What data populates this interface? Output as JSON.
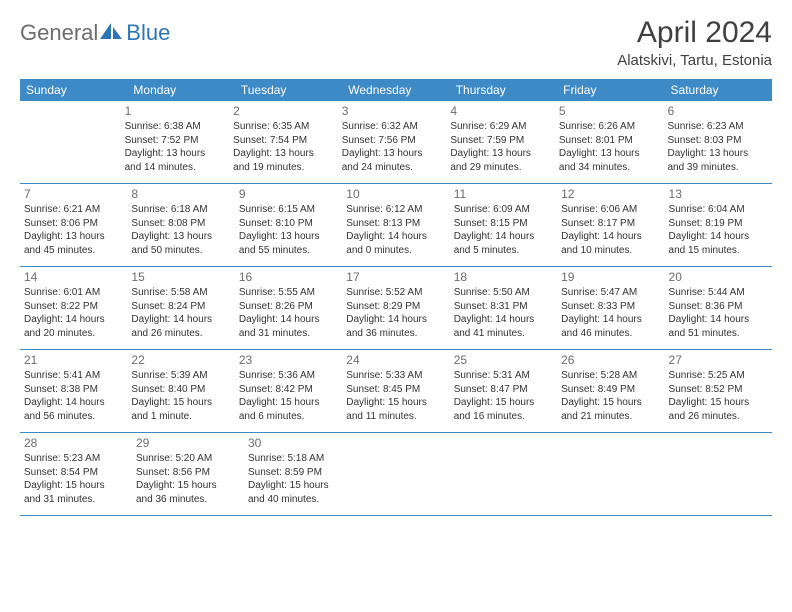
{
  "brand": {
    "general": "General",
    "blue": "Blue"
  },
  "title": "April 2024",
  "location": "Alatskivi, Tartu, Estonia",
  "colors": {
    "header_bg": "#3d8ac7",
    "header_text": "#ffffff",
    "daynum": "#6d6d6d",
    "body_text": "#333333",
    "rule": "#3d8ac7",
    "brand_gray": "#6d6d6d",
    "brand_blue": "#2e75b6",
    "background": "#ffffff"
  },
  "typography": {
    "title_fontsize": 30,
    "location_fontsize": 15,
    "dow_fontsize": 12,
    "daynum_fontsize": 12,
    "body_fontsize": 10
  },
  "daysOfWeek": [
    "Sunday",
    "Monday",
    "Tuesday",
    "Wednesday",
    "Thursday",
    "Friday",
    "Saturday"
  ],
  "grid": {
    "columns": 7,
    "rows": 5,
    "start_offset": 1,
    "days_in_month": 30
  },
  "days": {
    "1": {
      "sunrise": "Sunrise: 6:38 AM",
      "sunset": "Sunset: 7:52 PM",
      "d1": "Daylight: 13 hours",
      "d2": "and 14 minutes."
    },
    "2": {
      "sunrise": "Sunrise: 6:35 AM",
      "sunset": "Sunset: 7:54 PM",
      "d1": "Daylight: 13 hours",
      "d2": "and 19 minutes."
    },
    "3": {
      "sunrise": "Sunrise: 6:32 AM",
      "sunset": "Sunset: 7:56 PM",
      "d1": "Daylight: 13 hours",
      "d2": "and 24 minutes."
    },
    "4": {
      "sunrise": "Sunrise: 6:29 AM",
      "sunset": "Sunset: 7:59 PM",
      "d1": "Daylight: 13 hours",
      "d2": "and 29 minutes."
    },
    "5": {
      "sunrise": "Sunrise: 6:26 AM",
      "sunset": "Sunset: 8:01 PM",
      "d1": "Daylight: 13 hours",
      "d2": "and 34 minutes."
    },
    "6": {
      "sunrise": "Sunrise: 6:23 AM",
      "sunset": "Sunset: 8:03 PM",
      "d1": "Daylight: 13 hours",
      "d2": "and 39 minutes."
    },
    "7": {
      "sunrise": "Sunrise: 6:21 AM",
      "sunset": "Sunset: 8:06 PM",
      "d1": "Daylight: 13 hours",
      "d2": "and 45 minutes."
    },
    "8": {
      "sunrise": "Sunrise: 6:18 AM",
      "sunset": "Sunset: 8:08 PM",
      "d1": "Daylight: 13 hours",
      "d2": "and 50 minutes."
    },
    "9": {
      "sunrise": "Sunrise: 6:15 AM",
      "sunset": "Sunset: 8:10 PM",
      "d1": "Daylight: 13 hours",
      "d2": "and 55 minutes."
    },
    "10": {
      "sunrise": "Sunrise: 6:12 AM",
      "sunset": "Sunset: 8:13 PM",
      "d1": "Daylight: 14 hours",
      "d2": "and 0 minutes."
    },
    "11": {
      "sunrise": "Sunrise: 6:09 AM",
      "sunset": "Sunset: 8:15 PM",
      "d1": "Daylight: 14 hours",
      "d2": "and 5 minutes."
    },
    "12": {
      "sunrise": "Sunrise: 6:06 AM",
      "sunset": "Sunset: 8:17 PM",
      "d1": "Daylight: 14 hours",
      "d2": "and 10 minutes."
    },
    "13": {
      "sunrise": "Sunrise: 6:04 AM",
      "sunset": "Sunset: 8:19 PM",
      "d1": "Daylight: 14 hours",
      "d2": "and 15 minutes."
    },
    "14": {
      "sunrise": "Sunrise: 6:01 AM",
      "sunset": "Sunset: 8:22 PM",
      "d1": "Daylight: 14 hours",
      "d2": "and 20 minutes."
    },
    "15": {
      "sunrise": "Sunrise: 5:58 AM",
      "sunset": "Sunset: 8:24 PM",
      "d1": "Daylight: 14 hours",
      "d2": "and 26 minutes."
    },
    "16": {
      "sunrise": "Sunrise: 5:55 AM",
      "sunset": "Sunset: 8:26 PM",
      "d1": "Daylight: 14 hours",
      "d2": "and 31 minutes."
    },
    "17": {
      "sunrise": "Sunrise: 5:52 AM",
      "sunset": "Sunset: 8:29 PM",
      "d1": "Daylight: 14 hours",
      "d2": "and 36 minutes."
    },
    "18": {
      "sunrise": "Sunrise: 5:50 AM",
      "sunset": "Sunset: 8:31 PM",
      "d1": "Daylight: 14 hours",
      "d2": "and 41 minutes."
    },
    "19": {
      "sunrise": "Sunrise: 5:47 AM",
      "sunset": "Sunset: 8:33 PM",
      "d1": "Daylight: 14 hours",
      "d2": "and 46 minutes."
    },
    "20": {
      "sunrise": "Sunrise: 5:44 AM",
      "sunset": "Sunset: 8:36 PM",
      "d1": "Daylight: 14 hours",
      "d2": "and 51 minutes."
    },
    "21": {
      "sunrise": "Sunrise: 5:41 AM",
      "sunset": "Sunset: 8:38 PM",
      "d1": "Daylight: 14 hours",
      "d2": "and 56 minutes."
    },
    "22": {
      "sunrise": "Sunrise: 5:39 AM",
      "sunset": "Sunset: 8:40 PM",
      "d1": "Daylight: 15 hours",
      "d2": "and 1 minute."
    },
    "23": {
      "sunrise": "Sunrise: 5:36 AM",
      "sunset": "Sunset: 8:42 PM",
      "d1": "Daylight: 15 hours",
      "d2": "and 6 minutes."
    },
    "24": {
      "sunrise": "Sunrise: 5:33 AM",
      "sunset": "Sunset: 8:45 PM",
      "d1": "Daylight: 15 hours",
      "d2": "and 11 minutes."
    },
    "25": {
      "sunrise": "Sunrise: 5:31 AM",
      "sunset": "Sunset: 8:47 PM",
      "d1": "Daylight: 15 hours",
      "d2": "and 16 minutes."
    },
    "26": {
      "sunrise": "Sunrise: 5:28 AM",
      "sunset": "Sunset: 8:49 PM",
      "d1": "Daylight: 15 hours",
      "d2": "and 21 minutes."
    },
    "27": {
      "sunrise": "Sunrise: 5:25 AM",
      "sunset": "Sunset: 8:52 PM",
      "d1": "Daylight: 15 hours",
      "d2": "and 26 minutes."
    },
    "28": {
      "sunrise": "Sunrise: 5:23 AM",
      "sunset": "Sunset: 8:54 PM",
      "d1": "Daylight: 15 hours",
      "d2": "and 31 minutes."
    },
    "29": {
      "sunrise": "Sunrise: 5:20 AM",
      "sunset": "Sunset: 8:56 PM",
      "d1": "Daylight: 15 hours",
      "d2": "and 36 minutes."
    },
    "30": {
      "sunrise": "Sunrise: 5:18 AM",
      "sunset": "Sunset: 8:59 PM",
      "d1": "Daylight: 15 hours",
      "d2": "and 40 minutes."
    }
  }
}
